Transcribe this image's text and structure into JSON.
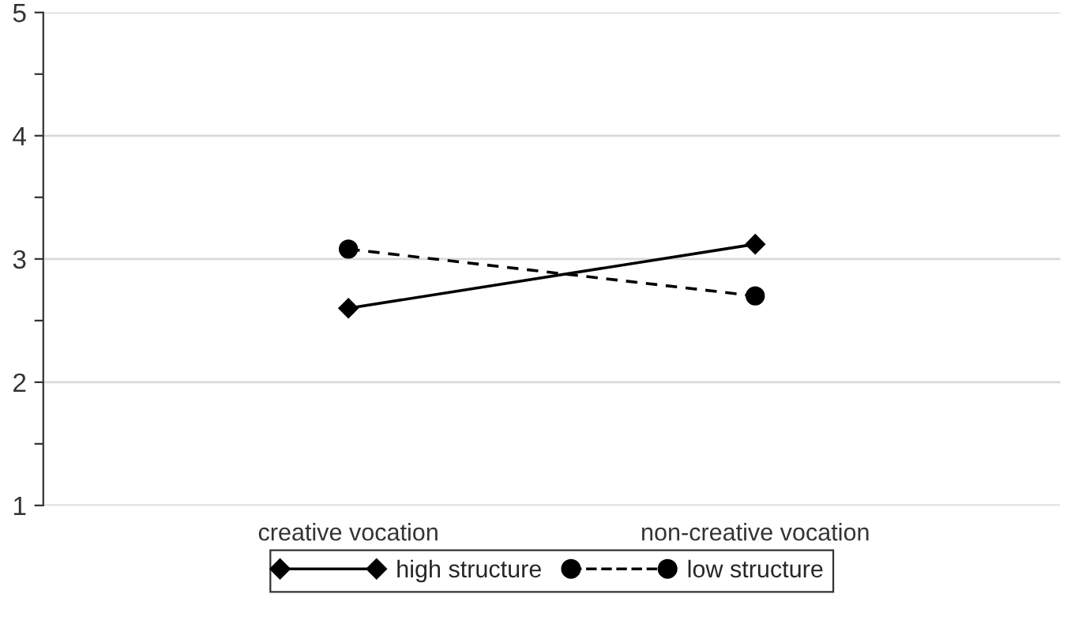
{
  "chart_data": {
    "type": "line",
    "categories": [
      "creative vocation",
      "non-creative vocation"
    ],
    "series": [
      {
        "name": "high structure",
        "color": "#000000",
        "values": [
          2.6,
          3.12
        ],
        "marker": "diamond",
        "line_style": "solid"
      },
      {
        "name": "low structure",
        "color": "#000000",
        "values": [
          3.08,
          2.7
        ],
        "marker": "circle",
        "line_style": "dashed"
      }
    ],
    "ylim": [
      1,
      5
    ],
    "yticks": [
      1,
      {
        "value": 1.5,
        "label": null
      },
      2,
      {
        "value": 2.5,
        "label": null
      },
      3,
      {
        "value": 3.5,
        "label": null
      },
      4,
      {
        "value": 4.5,
        "label": null
      },
      5
    ],
    "grid": "y",
    "legend": "bottom"
  }
}
